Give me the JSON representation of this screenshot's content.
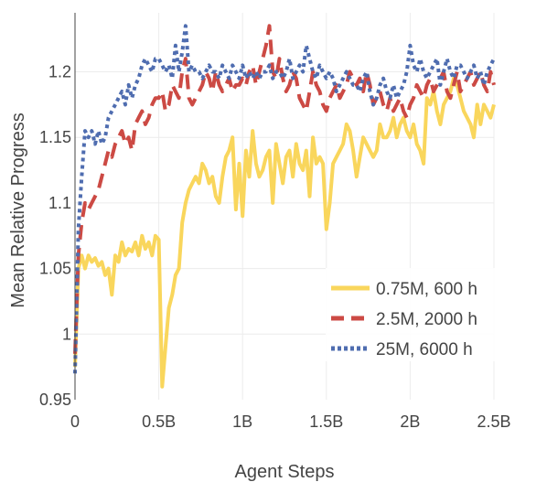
{
  "chart_data": {
    "type": "line",
    "xlabel": "Agent Steps",
    "ylabel": "Mean Relative Progress",
    "xlim": [
      0,
      2.5
    ],
    "ylim": [
      0.95,
      1.245
    ],
    "x_ticks": [
      {
        "value": 0,
        "label": "0"
      },
      {
        "value": 0.5,
        "label": "0.5B"
      },
      {
        "value": 1.0,
        "label": "1B"
      },
      {
        "value": 1.5,
        "label": "1.5B"
      },
      {
        "value": 2.0,
        "label": "2B"
      },
      {
        "value": 2.5,
        "label": "2.5B"
      }
    ],
    "y_ticks": [
      {
        "value": 0.95,
        "label": "0.95"
      },
      {
        "value": 1.0,
        "label": "1"
      },
      {
        "value": 1.05,
        "label": "1.05"
      },
      {
        "value": 1.1,
        "label": "1.1"
      },
      {
        "value": 1.15,
        "label": "1.15"
      },
      {
        "value": 1.2,
        "label": "1.2"
      }
    ],
    "grid": true,
    "legend_position": "bottom-right",
    "series": [
      {
        "name": "0.75M, 600 h",
        "color": "#f9d65c",
        "dash": "solid",
        "x": [
          0,
          0.02,
          0.04,
          0.06,
          0.08,
          0.1,
          0.12,
          0.14,
          0.16,
          0.18,
          0.2,
          0.22,
          0.24,
          0.26,
          0.28,
          0.3,
          0.32,
          0.34,
          0.36,
          0.38,
          0.4,
          0.42,
          0.44,
          0.46,
          0.48,
          0.5,
          0.52,
          0.54,
          0.56,
          0.58,
          0.6,
          0.62,
          0.64,
          0.66,
          0.68,
          0.7,
          0.72,
          0.74,
          0.76,
          0.78,
          0.8,
          0.82,
          0.84,
          0.86,
          0.88,
          0.9,
          0.92,
          0.94,
          0.96,
          0.98,
          1.0,
          1.02,
          1.04,
          1.06,
          1.08,
          1.1,
          1.12,
          1.14,
          1.16,
          1.18,
          1.2,
          1.22,
          1.24,
          1.26,
          1.28,
          1.3,
          1.32,
          1.34,
          1.36,
          1.38,
          1.4,
          1.42,
          1.44,
          1.46,
          1.48,
          1.5,
          1.52,
          1.54,
          1.56,
          1.58,
          1.6,
          1.62,
          1.64,
          1.66,
          1.68,
          1.7,
          1.72,
          1.74,
          1.76,
          1.78,
          1.8,
          1.82,
          1.84,
          1.86,
          1.88,
          1.9,
          1.92,
          1.94,
          1.96,
          1.98,
          2.0,
          2.02,
          2.04,
          2.06,
          2.08,
          2.1,
          2.12,
          2.14,
          2.16,
          2.18,
          2.2,
          2.22,
          2.24,
          2.26,
          2.28,
          2.3,
          2.32,
          2.34,
          2.36,
          2.38,
          2.4,
          2.42,
          2.44,
          2.46,
          2.48,
          2.5
        ],
        "y": [
          0.975,
          1.05,
          1.06,
          1.05,
          1.06,
          1.055,
          1.058,
          1.052,
          1.055,
          1.045,
          1.05,
          1.03,
          1.06,
          1.055,
          1.07,
          1.06,
          1.065,
          1.063,
          1.07,
          1.06,
          1.075,
          1.065,
          1.07,
          1.06,
          1.075,
          1.072,
          0.96,
          0.99,
          1.02,
          1.03,
          1.045,
          1.05,
          1.085,
          1.1,
          1.11,
          1.115,
          1.12,
          1.115,
          1.13,
          1.125,
          1.115,
          1.12,
          1.105,
          1.1,
          1.12,
          1.135,
          1.14,
          1.15,
          1.095,
          1.13,
          1.09,
          1.14,
          1.12,
          1.155,
          1.13,
          1.12,
          1.125,
          1.135,
          1.14,
          1.1,
          1.145,
          1.13,
          1.115,
          1.135,
          1.14,
          1.12,
          1.145,
          1.13,
          1.125,
          1.14,
          1.105,
          1.15,
          1.13,
          1.135,
          1.13,
          1.08,
          1.1,
          1.13,
          1.135,
          1.14,
          1.145,
          1.16,
          1.155,
          1.14,
          1.12,
          1.135,
          1.15,
          1.145,
          1.14,
          1.135,
          1.14,
          1.16,
          1.15,
          1.15,
          1.155,
          1.165,
          1.15,
          1.16,
          1.165,
          1.155,
          1.15,
          1.16,
          1.145,
          1.14,
          1.13,
          1.18,
          1.175,
          1.185,
          1.17,
          1.16,
          1.175,
          1.18,
          1.185,
          1.195,
          1.19,
          1.18,
          1.17,
          1.165,
          1.16,
          1.15,
          1.175,
          1.16,
          1.175,
          1.17,
          1.165,
          1.175
        ],
        "x_dense_note": "0"
      },
      {
        "name": "2.5M, 2000 h",
        "color": "#cc4a44",
        "dash": "dash",
        "x": [
          0,
          0.02,
          0.04,
          0.06,
          0.08,
          0.1,
          0.12,
          0.14,
          0.16,
          0.18,
          0.2,
          0.22,
          0.24,
          0.26,
          0.28,
          0.3,
          0.32,
          0.34,
          0.36,
          0.38,
          0.4,
          0.42,
          0.44,
          0.46,
          0.48,
          0.5,
          0.52,
          0.54,
          0.56,
          0.58,
          0.6,
          0.62,
          0.64,
          0.66,
          0.68,
          0.7,
          0.72,
          0.74,
          0.76,
          0.78,
          0.8,
          0.82,
          0.84,
          0.86,
          0.88,
          0.9,
          0.92,
          0.94,
          0.96,
          0.98,
          1.0,
          1.02,
          1.04,
          1.06,
          1.08,
          1.1,
          1.12,
          1.14,
          1.16,
          1.18,
          1.2,
          1.22,
          1.24,
          1.26,
          1.28,
          1.3,
          1.32,
          1.34,
          1.36,
          1.38,
          1.4,
          1.42,
          1.44,
          1.46,
          1.48,
          1.5,
          1.52,
          1.54,
          1.56,
          1.58,
          1.6,
          1.62,
          1.64,
          1.66,
          1.68,
          1.7,
          1.72,
          1.74,
          1.76,
          1.78,
          1.8,
          1.82,
          1.84,
          1.86,
          1.88,
          1.9,
          1.92,
          1.94,
          1.96,
          1.98,
          2.0,
          2.02,
          2.04,
          2.06,
          2.08,
          2.1,
          2.12,
          2.14,
          2.16,
          2.18,
          2.2,
          2.22,
          2.24,
          2.26,
          2.28,
          2.3,
          2.32,
          2.34,
          2.36,
          2.38,
          2.4,
          2.42,
          2.44,
          2.46,
          2.48,
          2.5
        ],
        "y": [
          0.985,
          1.06,
          1.085,
          1.1,
          1.095,
          1.1,
          1.105,
          1.11,
          1.12,
          1.13,
          1.14,
          1.135,
          1.145,
          1.15,
          1.155,
          1.145,
          1.15,
          1.14,
          1.16,
          1.165,
          1.17,
          1.16,
          1.165,
          1.175,
          1.18,
          1.18,
          1.185,
          1.17,
          1.175,
          1.19,
          1.185,
          1.18,
          1.2,
          1.21,
          1.18,
          1.175,
          1.18,
          1.185,
          1.19,
          1.2,
          1.195,
          1.185,
          1.2,
          1.19,
          1.185,
          1.19,
          1.195,
          1.185,
          1.19,
          1.19,
          1.195,
          1.19,
          1.2,
          1.205,
          1.19,
          1.2,
          1.21,
          1.22,
          1.235,
          1.2,
          1.195,
          1.21,
          1.195,
          1.185,
          1.19,
          1.2,
          1.195,
          1.18,
          1.175,
          1.17,
          1.185,
          1.2,
          1.19,
          1.185,
          1.175,
          1.17,
          1.18,
          1.185,
          1.19,
          1.18,
          1.185,
          1.19,
          1.2,
          1.195,
          1.19,
          1.195,
          1.185,
          1.2,
          1.19,
          1.175,
          1.18,
          1.185,
          1.175,
          1.17,
          1.18,
          1.17,
          1.175,
          1.18,
          1.17,
          1.165,
          1.175,
          1.18,
          1.19,
          1.185,
          1.18,
          1.19,
          1.195,
          1.185,
          1.19,
          1.195,
          1.2,
          1.185,
          1.18,
          1.19,
          1.2,
          1.185,
          1.19,
          1.195,
          1.2,
          1.19,
          1.195,
          1.2,
          1.19,
          1.185,
          1.2,
          1.19
        ],
        "x_dense_note": "0"
      },
      {
        "name": "25M, 6000 h",
        "color": "#4f6db0",
        "dash": "dot",
        "x": [
          0,
          0.02,
          0.04,
          0.06,
          0.08,
          0.1,
          0.12,
          0.14,
          0.16,
          0.18,
          0.2,
          0.22,
          0.24,
          0.26,
          0.28,
          0.3,
          0.32,
          0.34,
          0.36,
          0.38,
          0.4,
          0.42,
          0.44,
          0.46,
          0.48,
          0.5,
          0.52,
          0.54,
          0.56,
          0.58,
          0.6,
          0.62,
          0.64,
          0.66,
          0.68,
          0.7,
          0.72,
          0.74,
          0.76,
          0.78,
          0.8,
          0.82,
          0.84,
          0.86,
          0.88,
          0.9,
          0.92,
          0.94,
          0.96,
          0.98,
          1.0,
          1.02,
          1.04,
          1.06,
          1.08,
          1.1,
          1.12,
          1.14,
          1.16,
          1.18,
          1.2,
          1.22,
          1.24,
          1.26,
          1.28,
          1.3,
          1.32,
          1.34,
          1.36,
          1.38,
          1.4,
          1.42,
          1.44,
          1.46,
          1.48,
          1.5,
          1.52,
          1.54,
          1.56,
          1.58,
          1.6,
          1.62,
          1.64,
          1.66,
          1.68,
          1.7,
          1.72,
          1.74,
          1.76,
          1.78,
          1.8,
          1.82,
          1.84,
          1.86,
          1.88,
          1.9,
          1.92,
          1.94,
          1.96,
          1.98,
          2.0,
          2.02,
          2.04,
          2.06,
          2.08,
          2.1,
          2.12,
          2.14,
          2.16,
          2.18,
          2.2,
          2.22,
          2.24,
          2.26,
          2.28,
          2.3,
          2.32,
          2.34,
          2.36,
          2.38,
          2.4,
          2.42,
          2.44,
          2.46,
          2.48,
          2.5
        ],
        "y": [
          0.97,
          1.08,
          1.12,
          1.155,
          1.15,
          1.155,
          1.145,
          1.155,
          1.145,
          1.15,
          1.165,
          1.17,
          1.175,
          1.18,
          1.185,
          1.175,
          1.19,
          1.18,
          1.19,
          1.195,
          1.205,
          1.21,
          1.205,
          1.2,
          1.21,
          1.21,
          1.205,
          1.2,
          1.205,
          1.195,
          1.22,
          1.2,
          1.215,
          1.235,
          1.2,
          1.205,
          1.2,
          1.2,
          1.195,
          1.2,
          1.205,
          1.2,
          1.2,
          1.195,
          1.205,
          1.2,
          1.195,
          1.205,
          1.2,
          1.195,
          1.205,
          1.195,
          1.2,
          1.195,
          1.2,
          1.195,
          1.2,
          1.2,
          1.205,
          1.195,
          1.2,
          1.2,
          1.195,
          1.2,
          1.21,
          1.195,
          1.2,
          1.205,
          1.2,
          1.22,
          1.21,
          1.2,
          1.195,
          1.205,
          1.2,
          1.195,
          1.2,
          1.195,
          1.185,
          1.19,
          1.195,
          1.2,
          1.195,
          1.19,
          1.19,
          1.185,
          1.195,
          1.2,
          1.185,
          1.175,
          1.18,
          1.19,
          1.195,
          1.185,
          1.18,
          1.19,
          1.18,
          1.185,
          1.19,
          1.2,
          1.22,
          1.205,
          1.2,
          1.21,
          1.2,
          1.195,
          1.2,
          1.205,
          1.21,
          1.19,
          1.2,
          1.21,
          1.2,
          1.195,
          1.205,
          1.205,
          1.2,
          1.195,
          1.2,
          1.205,
          1.195,
          1.2,
          1.19,
          1.2,
          1.205,
          1.21
        ],
        "x_dense_note": "0"
      }
    ]
  }
}
